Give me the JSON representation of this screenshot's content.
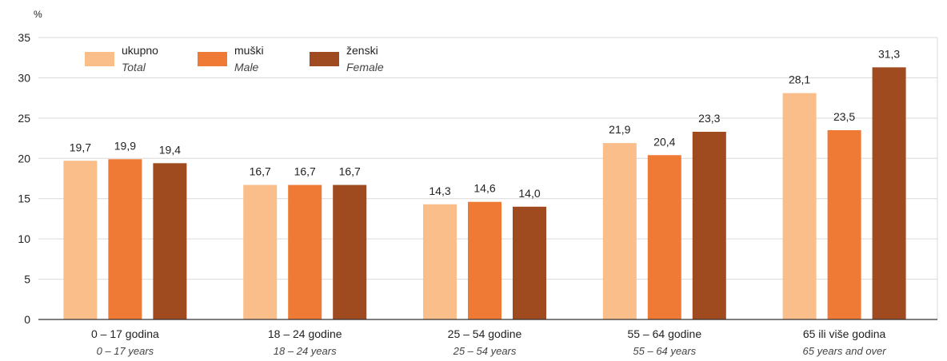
{
  "chart_data": {
    "type": "bar",
    "unit_label": "%",
    "ylim": [
      0,
      35
    ],
    "yticks": [
      0,
      5,
      10,
      15,
      20,
      25,
      30,
      35
    ],
    "ytick_labels": [
      "0",
      "5",
      "10",
      "15",
      "20",
      "25",
      "30",
      "35"
    ],
    "grid": true,
    "legend_position": "top-left",
    "categories": [
      {
        "label": "0  – 17 godina",
        "label_en": "0 – 17 years"
      },
      {
        "label": "18  – 24 godine",
        "label_en": "18 – 24 years"
      },
      {
        "label": "25  – 54 godine",
        "label_en": "25 – 54 years"
      },
      {
        "label": "55  – 64 godine",
        "label_en": "55 – 64 years"
      },
      {
        "label": "65 ili više godina",
        "label_en": "65 years and over"
      }
    ],
    "series": [
      {
        "name": "ukupno",
        "name_en": "Total",
        "color": "#F9BE8A",
        "values": [
          19.7,
          16.7,
          14.3,
          21.9,
          28.1
        ],
        "value_labels": [
          "19,7",
          "16,7",
          "14,3",
          "21,9",
          "28,1"
        ]
      },
      {
        "name": "muški",
        "name_en": "Male",
        "color": "#EE7A36",
        "values": [
          19.9,
          16.7,
          14.6,
          20.4,
          23.5
        ],
        "value_labels": [
          "19,9",
          "16,7",
          "14,6",
          "20,4",
          "23,5"
        ]
      },
      {
        "name": "ženski",
        "name_en": "Female",
        "color": "#A04A20",
        "values": [
          19.4,
          16.7,
          14.0,
          23.3,
          31.3
        ],
        "value_labels": [
          "19,4",
          "16,7",
          "14,0",
          "23,3",
          "31,3"
        ]
      }
    ]
  }
}
